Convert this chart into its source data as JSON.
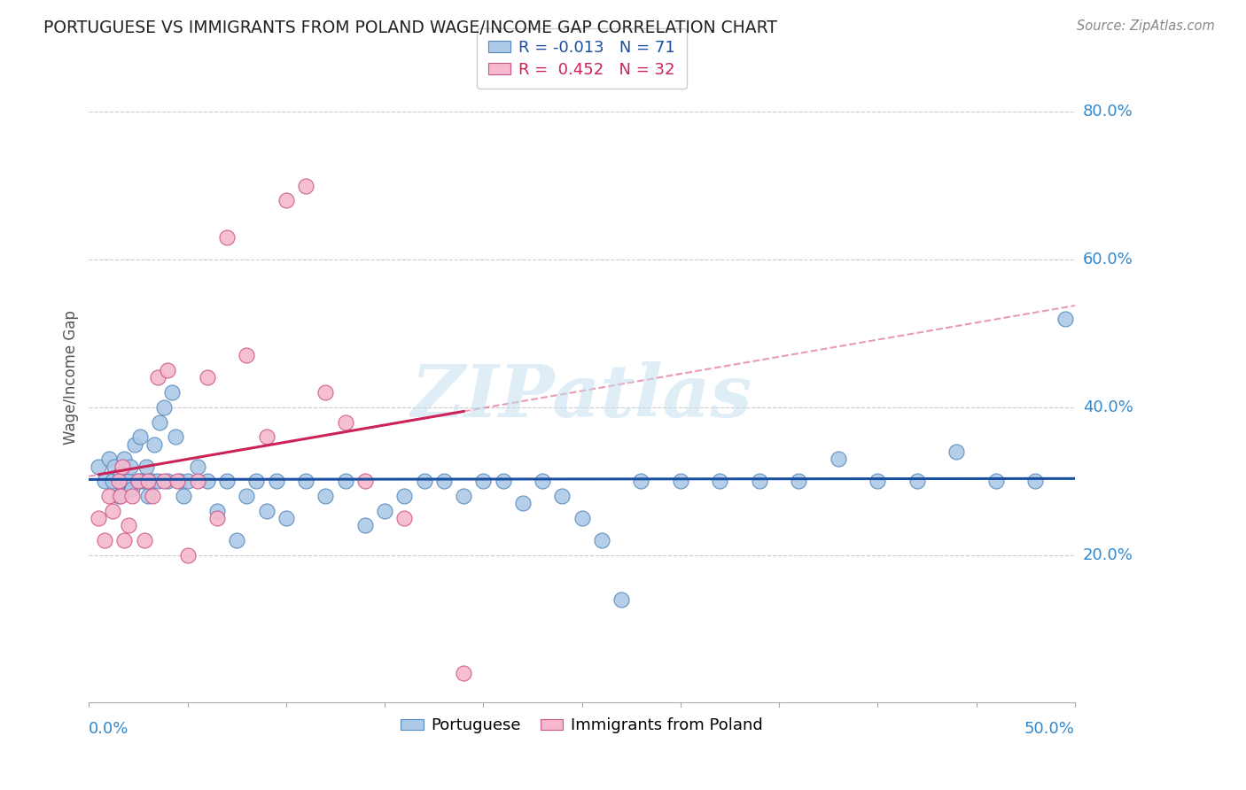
{
  "title": "PORTUGUESE VS IMMIGRANTS FROM POLAND WAGE/INCOME GAP CORRELATION CHART",
  "source": "Source: ZipAtlas.com",
  "ylabel": "Wage/Income Gap",
  "xlim": [
    0.0,
    0.5
  ],
  "ylim": [
    0.0,
    0.88
  ],
  "ytick_positions": [
    0.2,
    0.4,
    0.6,
    0.8
  ],
  "ytick_labels": [
    "20.0%",
    "40.0%",
    "60.0%",
    "80.0%"
  ],
  "xtick_labels": [
    "0.0%",
    "50.0%"
  ],
  "watermark": "ZIPatlas",
  "portuguese": {
    "color": "#adc9e8",
    "edge_color": "#5588bb",
    "line_color": "#1a4fa0",
    "x": [
      0.005,
      0.008,
      0.01,
      0.012,
      0.013,
      0.015,
      0.016,
      0.017,
      0.018,
      0.019,
      0.02,
      0.021,
      0.022,
      0.023,
      0.025,
      0.026,
      0.027,
      0.028,
      0.029,
      0.03,
      0.031,
      0.032,
      0.033,
      0.035,
      0.036,
      0.038,
      0.04,
      0.042,
      0.044,
      0.046,
      0.048,
      0.05,
      0.055,
      0.06,
      0.065,
      0.07,
      0.075,
      0.08,
      0.085,
      0.09,
      0.095,
      0.1,
      0.11,
      0.12,
      0.13,
      0.14,
      0.15,
      0.16,
      0.17,
      0.18,
      0.19,
      0.2,
      0.21,
      0.22,
      0.23,
      0.24,
      0.25,
      0.26,
      0.27,
      0.28,
      0.3,
      0.32,
      0.34,
      0.36,
      0.38,
      0.4,
      0.42,
      0.44,
      0.46,
      0.48,
      0.495
    ],
    "y": [
      0.32,
      0.3,
      0.33,
      0.3,
      0.32,
      0.28,
      0.31,
      0.3,
      0.33,
      0.3,
      0.3,
      0.32,
      0.29,
      0.35,
      0.3,
      0.36,
      0.3,
      0.3,
      0.32,
      0.28,
      0.3,
      0.3,
      0.35,
      0.3,
      0.38,
      0.4,
      0.3,
      0.42,
      0.36,
      0.3,
      0.28,
      0.3,
      0.32,
      0.3,
      0.26,
      0.3,
      0.22,
      0.28,
      0.3,
      0.26,
      0.3,
      0.25,
      0.3,
      0.28,
      0.3,
      0.24,
      0.26,
      0.28,
      0.3,
      0.3,
      0.28,
      0.3,
      0.3,
      0.27,
      0.3,
      0.28,
      0.25,
      0.22,
      0.14,
      0.3,
      0.3,
      0.3,
      0.3,
      0.3,
      0.33,
      0.3,
      0.3,
      0.34,
      0.3,
      0.3,
      0.52
    ]
  },
  "poland": {
    "color": "#f5b8ce",
    "edge_color": "#cc5588",
    "line_color": "#cc2255",
    "x": [
      0.005,
      0.008,
      0.01,
      0.012,
      0.015,
      0.016,
      0.017,
      0.018,
      0.02,
      0.022,
      0.025,
      0.028,
      0.03,
      0.032,
      0.035,
      0.038,
      0.04,
      0.045,
      0.05,
      0.055,
      0.06,
      0.065,
      0.07,
      0.08,
      0.09,
      0.1,
      0.11,
      0.12,
      0.13,
      0.14,
      0.16,
      0.19
    ],
    "y": [
      0.25,
      0.22,
      0.28,
      0.26,
      0.3,
      0.28,
      0.32,
      0.22,
      0.24,
      0.28,
      0.3,
      0.22,
      0.3,
      0.28,
      0.44,
      0.3,
      0.45,
      0.3,
      0.2,
      0.3,
      0.44,
      0.25,
      0.63,
      0.47,
      0.36,
      0.68,
      0.7,
      0.42,
      0.38,
      0.3,
      0.25,
      0.04
    ]
  },
  "legend_top": {
    "label1": "R = -0.013",
    "n1": "N = 71",
    "label2": "R =  0.452",
    "n2": "N = 32",
    "color1": "#adc9e8",
    "edge1": "#5588bb",
    "color2": "#f5b8ce",
    "edge2": "#cc5588",
    "text_color1": "#1a4fa0",
    "text_color2": "#cc2255"
  }
}
